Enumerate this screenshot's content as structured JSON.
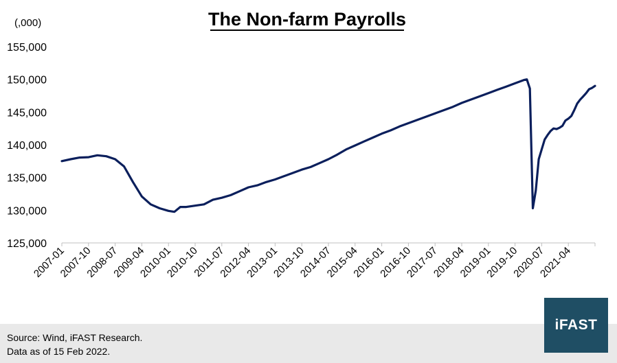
{
  "chart_data": {
    "type": "line",
    "title": "The Non-farm Payrolls",
    "unit_label": "(,000)",
    "xlabel": "",
    "ylabel": "",
    "ylim": [
      125000,
      155000
    ],
    "y_ticks": [
      125000,
      130000,
      135000,
      140000,
      145000,
      150000,
      155000
    ],
    "y_tick_labels": [
      "125,000",
      "130,000",
      "135,000",
      "140,000",
      "145,000",
      "150,000",
      "155,000"
    ],
    "x_tick_labels": [
      "2007-01",
      "2007-10",
      "2008-07",
      "2009-04",
      "2010-01",
      "2010-10",
      "2011-07",
      "2012-04",
      "2013-01",
      "2013-10",
      "2014-07",
      "2015-04",
      "2016-01",
      "2016-10",
      "2017-07",
      "2018-04",
      "2019-01",
      "2019-10",
      "2020-07",
      "2021-04"
    ],
    "x_range": [
      "2007-01",
      "2022-01"
    ],
    "series": [
      {
        "name": "",
        "color": "#0b1f5c",
        "points": [
          [
            "2007-01",
            137500
          ],
          [
            "2007-04",
            137800
          ],
          [
            "2007-07",
            138050
          ],
          [
            "2007-10",
            138100
          ],
          [
            "2008-01",
            138400
          ],
          [
            "2008-04",
            138250
          ],
          [
            "2008-07",
            137800
          ],
          [
            "2008-10",
            136700
          ],
          [
            "2009-01",
            134300
          ],
          [
            "2009-04",
            132100
          ],
          [
            "2009-07",
            130900
          ],
          [
            "2009-10",
            130300
          ],
          [
            "2010-01",
            129900
          ],
          [
            "2010-03",
            129750
          ],
          [
            "2010-05",
            130500
          ],
          [
            "2010-07",
            130500
          ],
          [
            "2010-10",
            130700
          ],
          [
            "2011-01",
            130900
          ],
          [
            "2011-04",
            131600
          ],
          [
            "2011-07",
            131900
          ],
          [
            "2011-10",
            132300
          ],
          [
            "2012-01",
            132900
          ],
          [
            "2012-04",
            133500
          ],
          [
            "2012-07",
            133800
          ],
          [
            "2012-10",
            134300
          ],
          [
            "2013-01",
            134700
          ],
          [
            "2013-04",
            135200
          ],
          [
            "2013-07",
            135700
          ],
          [
            "2013-10",
            136200
          ],
          [
            "2014-01",
            136600
          ],
          [
            "2014-04",
            137200
          ],
          [
            "2014-07",
            137800
          ],
          [
            "2014-10",
            138500
          ],
          [
            "2015-01",
            139300
          ],
          [
            "2015-04",
            139900
          ],
          [
            "2015-07",
            140500
          ],
          [
            "2015-10",
            141100
          ],
          [
            "2016-01",
            141700
          ],
          [
            "2016-04",
            142200
          ],
          [
            "2016-07",
            142800
          ],
          [
            "2016-10",
            143300
          ],
          [
            "2017-01",
            143800
          ],
          [
            "2017-04",
            144300
          ],
          [
            "2017-07",
            144800
          ],
          [
            "2017-10",
            145300
          ],
          [
            "2018-01",
            145800
          ],
          [
            "2018-04",
            146400
          ],
          [
            "2018-07",
            146900
          ],
          [
            "2018-10",
            147400
          ],
          [
            "2019-01",
            147900
          ],
          [
            "2019-04",
            148400
          ],
          [
            "2019-07",
            148900
          ],
          [
            "2019-10",
            149400
          ],
          [
            "2020-01",
            149900
          ],
          [
            "2020-02",
            150000
          ],
          [
            "2020-03",
            148600
          ],
          [
            "2020-04",
            130300
          ],
          [
            "2020-05",
            133000
          ],
          [
            "2020-06",
            137800
          ],
          [
            "2020-07",
            139300
          ],
          [
            "2020-08",
            140800
          ],
          [
            "2020-09",
            141500
          ],
          [
            "2020-10",
            142100
          ],
          [
            "2020-11",
            142500
          ],
          [
            "2020-12",
            142400
          ],
          [
            "2021-01",
            142600
          ],
          [
            "2021-02",
            142900
          ],
          [
            "2021-03",
            143700
          ],
          [
            "2021-04",
            144000
          ],
          [
            "2021-05",
            144400
          ],
          [
            "2021-06",
            145300
          ],
          [
            "2021-07",
            146300
          ],
          [
            "2021-08",
            146900
          ],
          [
            "2021-09",
            147400
          ],
          [
            "2021-10",
            147900
          ],
          [
            "2021-11",
            148500
          ],
          [
            "2021-12",
            148700
          ],
          [
            "2022-01",
            149000
          ]
        ]
      }
    ],
    "grid": false,
    "legend": "none"
  },
  "footer": {
    "source": "Source: Wind, iFAST Research.",
    "data_date": "Data as of 15 Feb 2022."
  },
  "logo": {
    "text": "iFAST",
    "color": "#1f4e64"
  }
}
